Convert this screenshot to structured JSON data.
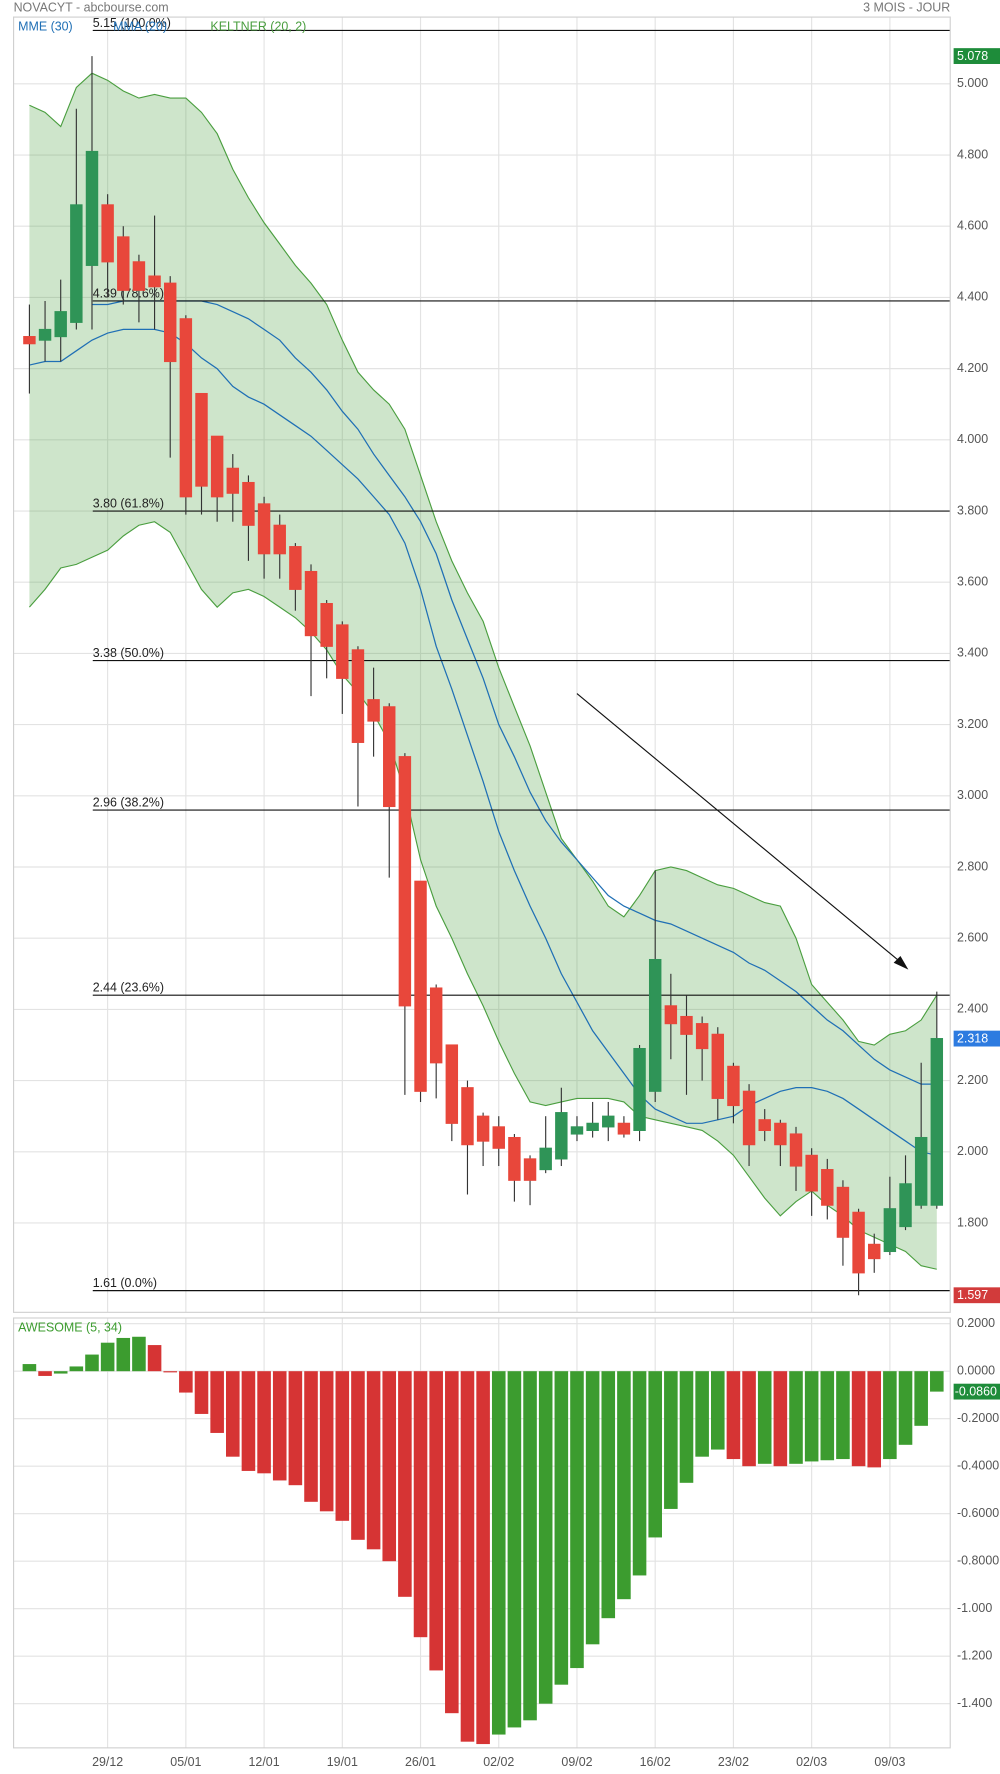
{
  "header": {
    "title": "NOVACYT - abcbourse.com",
    "period": "3 MOIS - JOUR"
  },
  "chart_data": [
    {
      "type": "candlestick",
      "open": [
        4.29,
        4.28,
        4.29,
        4.33,
        4.49,
        4.66,
        4.57,
        4.5,
        4.46,
        4.44,
        4.34,
        4.13,
        4.01,
        3.92,
        3.88,
        3.82,
        3.76,
        3.7,
        3.63,
        3.54,
        3.48,
        3.41,
        3.27,
        3.25,
        3.11,
        2.76,
        2.46,
        2.3,
        2.18,
        2.1,
        2.07,
        2.04,
        1.98,
        1.95,
        1.98,
        2.05,
        2.06,
        2.07,
        2.08,
        2.06,
        2.17,
        2.41,
        2.38,
        2.36,
        2.33,
        2.24,
        2.17,
        2.09,
        2.08,
        2.05,
        1.99,
        1.95,
        1.9,
        1.83,
        1.74,
        1.72,
        1.79,
        1.85,
        1.85
      ],
      "high": [
        4.38,
        4.39,
        4.45,
        4.93,
        5.078,
        4.69,
        4.6,
        4.52,
        4.63,
        4.46,
        4.35,
        4.13,
        4.01,
        3.96,
        3.9,
        3.84,
        3.79,
        3.71,
        3.65,
        3.55,
        3.49,
        3.42,
        3.36,
        3.26,
        3.12,
        2.76,
        2.47,
        2.3,
        2.2,
        2.11,
        2.1,
        2.05,
        1.99,
        2.1,
        2.18,
        2.1,
        2.14,
        2.14,
        2.1,
        2.3,
        2.79,
        2.5,
        2.44,
        2.38,
        2.35,
        2.25,
        2.19,
        2.12,
        2.09,
        2.07,
        2.01,
        1.98,
        1.92,
        1.84,
        1.77,
        1.93,
        1.99,
        2.25,
        2.45
      ],
      "low": [
        4.13,
        4.22,
        4.22,
        4.31,
        4.31,
        4.4,
        4.38,
        4.33,
        4.31,
        3.95,
        3.79,
        3.79,
        3.77,
        3.77,
        3.66,
        3.61,
        3.61,
        3.52,
        3.28,
        3.33,
        3.23,
        2.97,
        3.11,
        2.77,
        2.16,
        2.14,
        2.15,
        2.03,
        1.88,
        1.96,
        1.96,
        1.86,
        1.85,
        1.94,
        1.96,
        2.03,
        2.04,
        2.03,
        2.04,
        2.03,
        2.14,
        2.26,
        2.16,
        2.2,
        2.09,
        2.08,
        1.96,
        2.03,
        1.96,
        1.89,
        1.82,
        1.81,
        1.68,
        1.597,
        1.66,
        1.71,
        1.78,
        1.84,
        1.84
      ],
      "close": [
        4.27,
        4.31,
        4.36,
        4.66,
        4.81,
        4.5,
        4.42,
        4.42,
        4.43,
        4.22,
        3.84,
        3.87,
        3.84,
        3.85,
        3.76,
        3.68,
        3.68,
        3.58,
        3.45,
        3.42,
        3.33,
        3.15,
        3.21,
        2.97,
        2.41,
        2.17,
        2.25,
        2.08,
        2.02,
        2.03,
        2.01,
        1.92,
        1.92,
        2.01,
        2.11,
        2.07,
        2.08,
        2.1,
        2.05,
        2.29,
        2.54,
        2.36,
        2.33,
        2.29,
        2.15,
        2.13,
        2.02,
        2.06,
        2.02,
        1.96,
        1.89,
        1.85,
        1.76,
        1.66,
        1.7,
        1.84,
        1.91,
        2.04,
        2.318
      ],
      "up_color": "#2f9457",
      "down_color": "#e8473b",
      "series": [
        {
          "name": "MME (30)",
          "color": "#1f6fb5",
          "values": [
            4.21,
            4.22,
            4.22,
            4.25,
            4.28,
            4.3,
            4.31,
            4.31,
            4.31,
            4.3,
            4.27,
            4.23,
            4.2,
            4.15,
            4.12,
            4.1,
            4.07,
            4.04,
            4.01,
            3.97,
            3.93,
            3.89,
            3.84,
            3.79,
            3.71,
            3.58,
            3.42,
            3.3,
            3.17,
            3.04,
            2.9,
            2.79,
            2.69,
            2.6,
            2.5,
            2.42,
            2.34,
            2.28,
            2.22,
            2.16,
            2.12,
            2.1,
            2.08,
            2.08,
            2.09,
            2.1,
            2.13,
            2.15,
            2.17,
            2.18,
            2.18,
            2.17,
            2.15,
            2.12,
            2.09,
            2.06,
            2.03,
            2.0,
            1.99
          ]
        },
        {
          "name": "MMA (20)",
          "color": "#1f6fb5",
          "values": [
            null,
            null,
            null,
            null,
            4.38,
            4.38,
            4.39,
            4.39,
            4.39,
            4.39,
            4.39,
            4.39,
            4.38,
            4.36,
            4.34,
            4.31,
            4.28,
            4.23,
            4.19,
            4.14,
            4.08,
            4.03,
            3.96,
            3.9,
            3.84,
            3.77,
            3.68,
            3.55,
            3.44,
            3.33,
            3.2,
            3.11,
            3.01,
            2.93,
            2.87,
            2.82,
            2.77,
            2.72,
            2.69,
            2.67,
            2.65,
            2.64,
            2.62,
            2.6,
            2.58,
            2.56,
            2.53,
            2.51,
            2.48,
            2.45,
            2.41,
            2.37,
            2.34,
            2.3,
            2.26,
            2.23,
            2.21,
            2.19,
            2.19
          ]
        }
      ],
      "keltner": {
        "name": "KELTNER (20, 2)",
        "color": "#4a9e3f",
        "upper": [
          4.94,
          4.92,
          4.88,
          4.99,
          5.03,
          5.01,
          4.98,
          4.96,
          4.97,
          4.96,
          4.96,
          4.92,
          4.86,
          4.76,
          4.68,
          4.61,
          4.55,
          4.49,
          4.44,
          4.38,
          4.28,
          4.19,
          4.14,
          4.1,
          4.03,
          3.9,
          3.77,
          3.66,
          3.57,
          3.49,
          3.36,
          3.25,
          3.14,
          3.01,
          2.88,
          2.82,
          2.76,
          2.69,
          2.66,
          2.72,
          2.79,
          2.8,
          2.79,
          2.77,
          2.75,
          2.74,
          2.72,
          2.7,
          2.69,
          2.6,
          2.47,
          2.42,
          2.37,
          2.31,
          2.3,
          2.33,
          2.34,
          2.37,
          2.44
        ],
        "lower": [
          3.53,
          3.58,
          3.64,
          3.65,
          3.67,
          3.69,
          3.73,
          3.76,
          3.77,
          3.74,
          3.66,
          3.58,
          3.53,
          3.57,
          3.58,
          3.56,
          3.53,
          3.5,
          3.46,
          3.41,
          3.34,
          3.29,
          3.23,
          3.15,
          3.01,
          2.82,
          2.69,
          2.6,
          2.5,
          2.41,
          2.31,
          2.22,
          2.14,
          2.13,
          2.14,
          2.15,
          2.15,
          2.15,
          2.14,
          2.1,
          2.09,
          2.08,
          2.07,
          2.06,
          2.03,
          1.99,
          1.93,
          1.87,
          1.82,
          1.86,
          1.89,
          1.85,
          1.82,
          1.78,
          1.76,
          1.74,
          1.72,
          1.68,
          1.67
        ]
      },
      "levels": [
        {
          "value": 5.15,
          "label": "5.15 (100.0%)"
        },
        {
          "value": 4.39,
          "label": "4.39 (78.6%)"
        },
        {
          "value": 3.8,
          "label": "3.80 (61.8%)"
        },
        {
          "value": 3.38,
          "label": "3.38 (50.0%)"
        },
        {
          "value": 2.96,
          "label": "2.96 (38.2%)"
        },
        {
          "value": 2.44,
          "label": "2.44 (23.6%)"
        },
        {
          "value": 1.61,
          "label": "1.61 (0.0%)"
        }
      ],
      "ylim": [
        1.549,
        5.1875
      ],
      "yticks": [
        {
          "value": 1.8,
          "label": "1.800"
        },
        {
          "value": 2.0,
          "label": "2.000"
        },
        {
          "value": 2.2,
          "label": "2.200"
        },
        {
          "value": 2.4,
          "label": "2.400"
        },
        {
          "value": 2.6,
          "label": "2.600"
        },
        {
          "value": 2.8,
          "label": "2.800"
        },
        {
          "value": 3.0,
          "label": "3.000"
        },
        {
          "value": 3.2,
          "label": "3.200"
        },
        {
          "value": 3.4,
          "label": "3.400"
        },
        {
          "value": 3.6,
          "label": "3.600"
        },
        {
          "value": 3.8,
          "label": "3.800"
        },
        {
          "value": 4.0,
          "label": "4.000"
        },
        {
          "value": 4.2,
          "label": "4.200"
        },
        {
          "value": 4.4,
          "label": "4.400"
        },
        {
          "value": 4.6,
          "label": "4.600"
        },
        {
          "value": 4.8,
          "label": "4.800"
        },
        {
          "value": 5.0,
          "label": "5.000"
        }
      ],
      "grid": true
    },
    {
      "type": "bar",
      "title": "AWESOME (5, 34)",
      "categories": [
        null,
        null,
        null,
        null,
        null,
        "29/12",
        null,
        null,
        null,
        null,
        "05/01",
        null,
        null,
        null,
        null,
        "12/01",
        null,
        null,
        null,
        null,
        "19/01",
        null,
        null,
        null,
        null,
        "26/01",
        null,
        null,
        null,
        null,
        "02/02",
        null,
        null,
        null,
        null,
        "09/02",
        null,
        null,
        null,
        null,
        "16/02",
        null,
        null,
        null,
        null,
        "23/02",
        null,
        null,
        null,
        null,
        "02/03",
        null,
        null,
        null,
        null,
        "09/03",
        null,
        null,
        null
      ],
      "values": [
        0.03,
        -0.02,
        -0.01,
        0.02,
        0.07,
        0.12,
        0.14,
        0.145,
        0.11,
        -0.005,
        -0.09,
        -0.18,
        -0.26,
        -0.36,
        -0.42,
        -0.43,
        -0.46,
        -0.48,
        -0.55,
        -0.59,
        -0.63,
        -0.71,
        -0.75,
        -0.8,
        -0.95,
        -1.12,
        -1.26,
        -1.44,
        -1.56,
        -1.57,
        -1.53,
        -1.5,
        -1.47,
        -1.4,
        -1.32,
        -1.25,
        -1.15,
        -1.04,
        -0.96,
        -0.86,
        -0.7,
        -0.58,
        -0.47,
        -0.36,
        -0.33,
        -0.37,
        -0.4,
        -0.39,
        -0.4,
        -0.39,
        -0.38,
        -0.375,
        -0.37,
        -0.4,
        -0.405,
        -0.37,
        -0.31,
        -0.23,
        -0.086
      ],
      "value_labels": [
        null,
        null,
        null,
        null,
        null,
        null,
        null,
        null,
        null,
        null,
        null,
        null,
        null,
        null,
        null,
        null,
        null,
        null,
        null,
        null,
        null,
        null,
        null,
        null,
        null,
        null,
        null,
        null,
        null,
        null,
        null,
        null,
        null,
        null,
        null,
        null,
        null,
        null,
        null,
        null,
        null,
        null,
        null,
        null,
        null,
        null,
        null,
        null,
        null,
        null,
        null,
        null,
        null,
        null,
        null,
        null,
        null,
        null,
        "-0.0860"
      ],
      "up_color": "#3c9c2f",
      "down_color": "#d63434",
      "title_color": "#3c9c2f",
      "ylim": [
        -1.586,
        0.224
      ],
      "yticks": [
        {
          "value": 0.2,
          "label": "0.2000"
        },
        {
          "value": 0,
          "label": "0.0000"
        },
        {
          "value": -0.2,
          "label": "-0.2000"
        },
        {
          "value": -0.4,
          "label": "-0.4000"
        },
        {
          "value": -0.6,
          "label": "-0.6000"
        },
        {
          "value": -0.8,
          "label": "-0.8000"
        },
        {
          "value": -1.0,
          "label": "-1.000"
        },
        {
          "value": -1.2,
          "label": "-1.200"
        },
        {
          "value": -1.4,
          "label": "-1.400"
        }
      ],
      "grid": true
    }
  ]
}
